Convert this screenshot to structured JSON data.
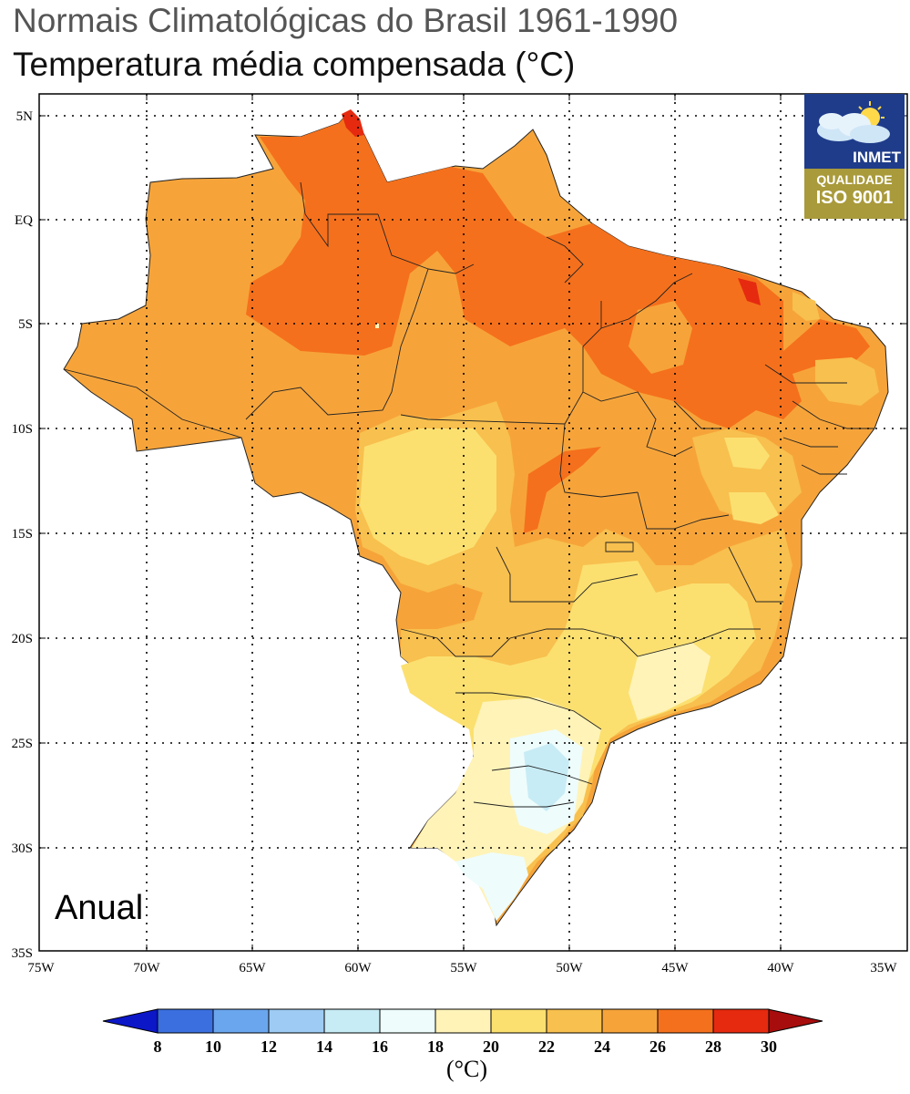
{
  "header": {
    "title": "Normais Climatológicas do Brasil 1961-1990",
    "subtitle": "Temperatura média compensada (°C)"
  },
  "badge": {
    "name": "INMET",
    "quality": "QUALIDADE",
    "iso": "ISO 9001"
  },
  "period_label": "Anual",
  "axes": {
    "lat_labels": [
      "5N",
      "EQ",
      "5S",
      "10S",
      "15S",
      "20S",
      "25S",
      "30S",
      "35S"
    ],
    "lon_labels": [
      "75W",
      "70W",
      "65W",
      "60W",
      "55W",
      "50W",
      "45W",
      "40W",
      "35W"
    ]
  },
  "colorbar": {
    "ticks": [
      "8",
      "10",
      "12",
      "14",
      "16",
      "18",
      "20",
      "22",
      "24",
      "26",
      "28",
      "30"
    ],
    "unit": "(°C)",
    "colors": [
      "#3b6fe0",
      "#6aa6ee",
      "#9dcbf3",
      "#c8ecf5",
      "#eefcfc",
      "#fff3b8",
      "#fbe070",
      "#f8c04e",
      "#f6a43a",
      "#f5701c",
      "#e52a10"
    ],
    "under_color": "#0c17c8",
    "over_color": "#a80d0d"
  },
  "chart_data": {
    "type": "heatmap",
    "title": "Normais Climatológicas do Brasil 1961-1990",
    "subtitle": "Temperatura média compensada (°C)",
    "period": "Anual",
    "lat_range": [
      -35,
      5
    ],
    "lon_range": [
      -75,
      -35
    ],
    "value_range": [
      8,
      30
    ],
    "unit": "°C"
  }
}
